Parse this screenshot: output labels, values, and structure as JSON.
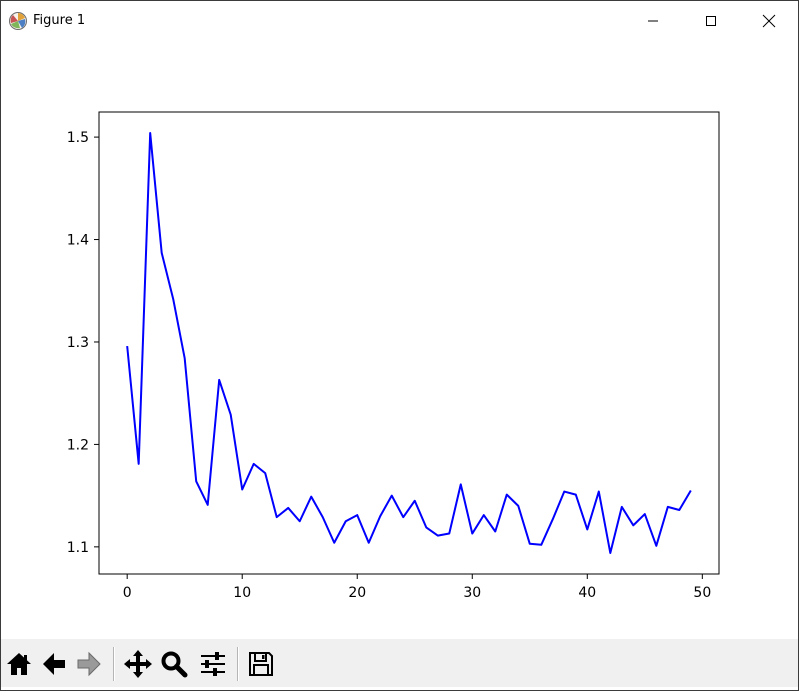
{
  "window": {
    "title": "Figure 1",
    "icons": {
      "app": "matplotlib-figure-icon",
      "minimize": "minimize-icon",
      "maximize": "maximize-icon",
      "close": "close-icon"
    }
  },
  "toolbar": {
    "items": [
      {
        "name": "home-button",
        "icon": "home-icon"
      },
      {
        "name": "back-button",
        "icon": "arrow-left-icon"
      },
      {
        "name": "forward-button",
        "icon": "arrow-right-icon"
      },
      {
        "name": "pan-button",
        "icon": "move-icon"
      },
      {
        "name": "zoom-button",
        "icon": "magnifier-icon"
      },
      {
        "name": "configure-subplots-button",
        "icon": "sliders-icon"
      },
      {
        "name": "save-button",
        "icon": "floppy-disk-icon"
      }
    ]
  },
  "chart_data": {
    "type": "line",
    "title": "",
    "xlabel": "",
    "ylabel": "",
    "xlim": [
      -2.45,
      51.45
    ],
    "ylim": [
      1.0735,
      1.5245
    ],
    "xticks": [
      0,
      10,
      20,
      30,
      40,
      50
    ],
    "xtick_labels": [
      "0",
      "10",
      "20",
      "30",
      "40",
      "50"
    ],
    "yticks": [
      1.1,
      1.2,
      1.3,
      1.4,
      1.5
    ],
    "ytick_labels": [
      "1.1",
      "1.2",
      "1.3",
      "1.4",
      "1.5"
    ],
    "grid": false,
    "legend": "none",
    "series": [
      {
        "color": "#0000ff",
        "x": [
          0,
          1,
          2,
          3,
          4,
          5,
          6,
          7,
          8,
          9,
          10,
          11,
          12,
          13,
          14,
          15,
          16,
          17,
          18,
          19,
          20,
          21,
          22,
          23,
          24,
          25,
          26,
          27,
          28,
          29,
          30,
          31,
          32,
          33,
          34,
          35,
          36,
          37,
          38,
          39,
          40,
          41,
          42,
          43,
          44,
          45,
          46,
          47,
          48,
          49
        ],
        "y": [
          1.296,
          1.181,
          1.504,
          1.387,
          1.342,
          1.284,
          1.164,
          1.141,
          1.263,
          1.229,
          1.156,
          1.181,
          1.172,
          1.129,
          1.138,
          1.125,
          1.149,
          1.129,
          1.104,
          1.125,
          1.131,
          1.104,
          1.13,
          1.15,
          1.129,
          1.145,
          1.119,
          1.111,
          1.113,
          1.161,
          1.113,
          1.131,
          1.115,
          1.151,
          1.14,
          1.103,
          1.102,
          1.127,
          1.154,
          1.151,
          1.117,
          1.154,
          1.094,
          1.139,
          1.121,
          1.132,
          1.101,
          1.139,
          1.136,
          1.155
        ]
      }
    ]
  }
}
